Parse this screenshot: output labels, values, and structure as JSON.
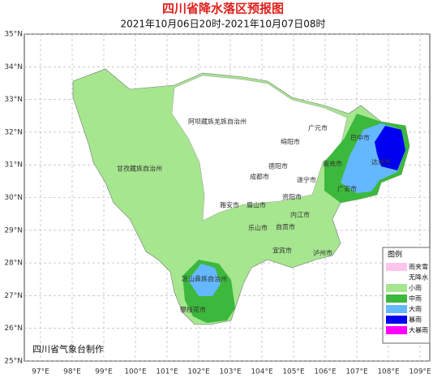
{
  "header": {
    "title": "四川省降水落区预报图",
    "subtitle": "2021年10月06日20时-2021年10月07日08时"
  },
  "map": {
    "lat_ticks": [
      {
        "value": 35,
        "label": "35°N"
      },
      {
        "value": 34,
        "label": "34°N"
      },
      {
        "value": 33,
        "label": "33°N"
      },
      {
        "value": 32,
        "label": "32°N"
      },
      {
        "value": 31,
        "label": "31°N"
      },
      {
        "value": 30,
        "label": "30°N"
      },
      {
        "value": 29,
        "label": "29°N"
      },
      {
        "value": 28,
        "label": "28°N"
      },
      {
        "value": 27,
        "label": "27°N"
      },
      {
        "value": 26,
        "label": "26°N"
      },
      {
        "value": 25,
        "label": "25°N"
      }
    ],
    "lon_ticks": [
      {
        "value": 97,
        "label": "97°E"
      },
      {
        "value": 98,
        "label": "98°E"
      },
      {
        "value": 99,
        "label": "99°E"
      },
      {
        "value": 100,
        "label": "100°E"
      },
      {
        "value": 101,
        "label": "101°E"
      },
      {
        "value": 102,
        "label": "102°E"
      },
      {
        "value": 103,
        "label": "103°E"
      },
      {
        "value": 104,
        "label": "104°E"
      },
      {
        "value": 105,
        "label": "105°E"
      },
      {
        "value": 106,
        "label": "106°E"
      },
      {
        "value": 107,
        "label": "107°E"
      },
      {
        "value": 108,
        "label": "108°E"
      },
      {
        "value": 109,
        "label": "109°E"
      }
    ],
    "regions": [
      "阿坝藏族羌族自治州",
      "广元市",
      "绵阳市",
      "巴中市",
      "达州市",
      "南充市",
      "德阳市",
      "成都市",
      "遂宁市",
      "广安市",
      "甘孜藏族自治州",
      "资阳市",
      "雅安市",
      "眉山市",
      "内江市",
      "乐山市",
      "自贡市",
      "宜宾市",
      "泸州市",
      "凉山彝族自治州",
      "攀枝花市"
    ]
  },
  "legend": {
    "title": "图例",
    "items": [
      {
        "label": "雨夹雪",
        "color": "#ffc4ec"
      },
      {
        "label": "无降水",
        "color": "#ffffff"
      },
      {
        "label": "小雨",
        "color": "#a6e68f"
      },
      {
        "label": "中雨",
        "color": "#3cb83c"
      },
      {
        "label": "大雨",
        "color": "#63b8ff"
      },
      {
        "label": "暴雨",
        "color": "#0000f0"
      },
      {
        "label": "大暴雨",
        "color": "#ff00ff"
      }
    ]
  },
  "footer": {
    "credit": "四川省气象台制作"
  }
}
